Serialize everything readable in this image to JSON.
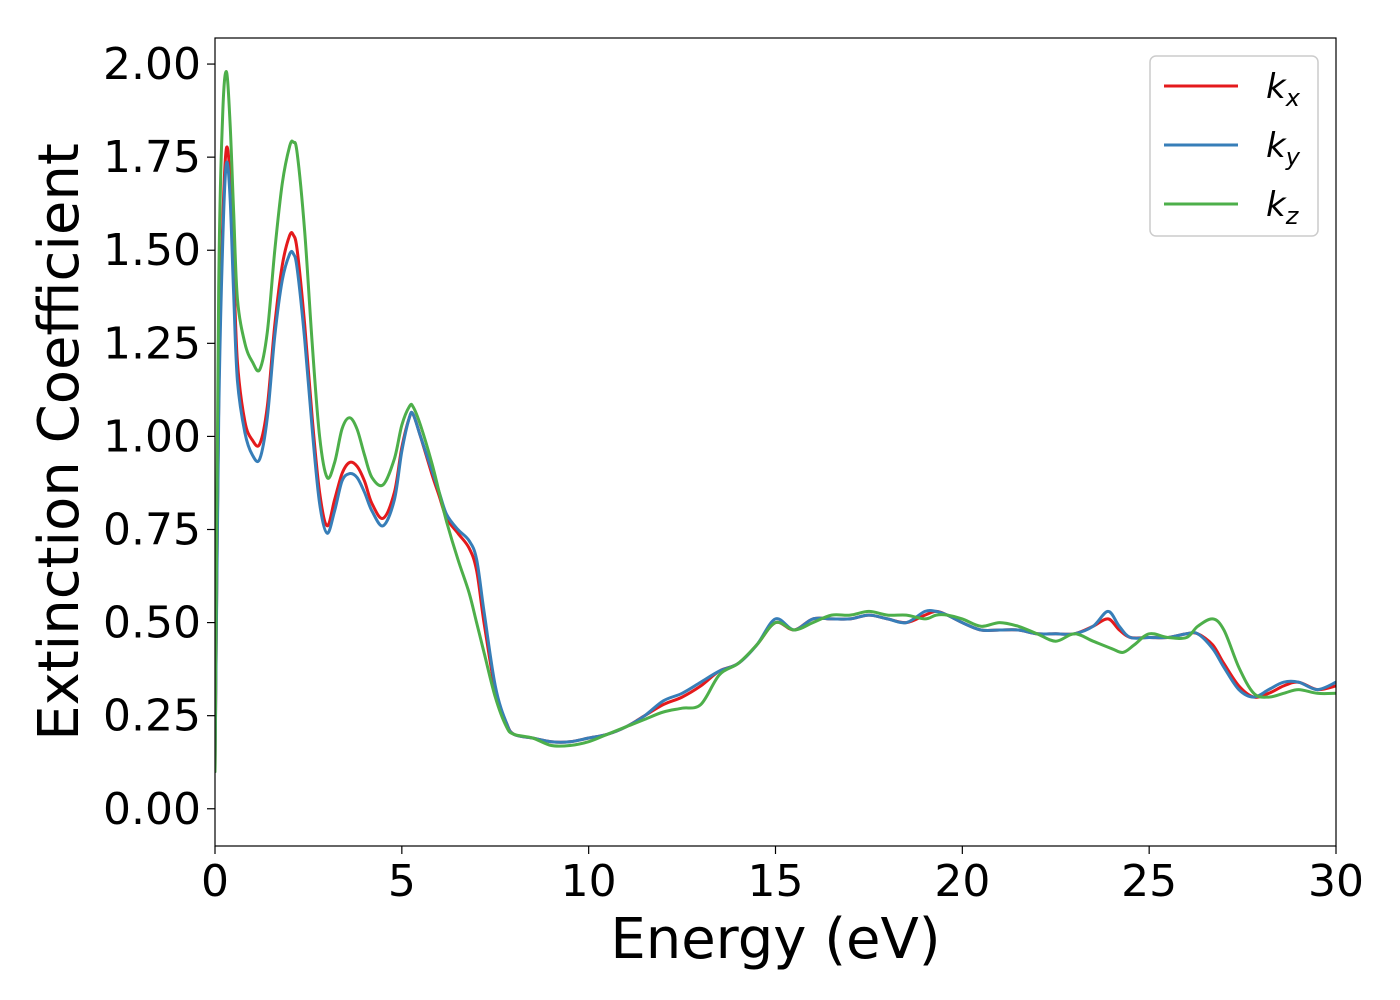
{
  "chart_data": {
    "type": "line",
    "xlabel": "Energy (eV)",
    "ylabel": "Extinction Coefficient",
    "xlim": [
      0,
      30
    ],
    "ylim": [
      -0.1,
      2.07
    ],
    "xticks": [
      0,
      5,
      10,
      15,
      20,
      25,
      30
    ],
    "xtick_labels": [
      "0",
      "5",
      "10",
      "15",
      "20",
      "25",
      "30"
    ],
    "yticks": [
      0.0,
      0.25,
      0.5,
      0.75,
      1.0,
      1.25,
      1.5,
      1.75,
      2.0
    ],
    "ytick_labels": [
      "0.00",
      "0.25",
      "0.50",
      "0.75",
      "1.00",
      "1.25",
      "1.50",
      "1.75",
      "2.00"
    ],
    "grid": false,
    "legend_position": "top-right",
    "series": [
      {
        "name": "k",
        "subscript": "x",
        "color": "#e41a1c",
        "x": [
          0,
          0.1,
          0.2,
          0.3,
          0.4,
          0.5,
          0.6,
          0.8,
          1.0,
          1.2,
          1.4,
          1.6,
          1.8,
          2.0,
          2.1,
          2.2,
          2.4,
          2.6,
          2.8,
          3.0,
          3.2,
          3.4,
          3.6,
          3.8,
          4.0,
          4.2,
          4.5,
          4.8,
          5.0,
          5.2,
          5.3,
          5.5,
          5.8,
          6.0,
          6.2,
          6.5,
          6.8,
          7.0,
          7.2,
          7.5,
          7.8,
          8.0,
          8.5,
          9.0,
          9.5,
          10.0,
          10.5,
          11.0,
          11.5,
          12.0,
          12.5,
          13.0,
          13.5,
          14.0,
          14.5,
          15.0,
          15.5,
          16.0,
          16.5,
          17.0,
          17.5,
          18.0,
          18.5,
          19.0,
          19.3,
          19.6,
          20.0,
          20.5,
          21.0,
          21.5,
          22.0,
          22.5,
          23.0,
          23.5,
          23.9,
          24.2,
          24.5,
          25.0,
          25.5,
          26.0,
          26.3,
          26.7,
          27.0,
          27.4,
          27.8,
          28.2,
          28.6,
          29.0,
          29.5,
          30.0
        ],
        "y": [
          0.1,
          1.1,
          1.55,
          1.77,
          1.7,
          1.45,
          1.2,
          1.04,
          0.99,
          0.98,
          1.08,
          1.3,
          1.46,
          1.54,
          1.54,
          1.5,
          1.3,
          1.05,
          0.85,
          0.76,
          0.83,
          0.9,
          0.93,
          0.92,
          0.88,
          0.82,
          0.78,
          0.85,
          0.97,
          1.05,
          1.06,
          1.0,
          0.9,
          0.84,
          0.78,
          0.74,
          0.7,
          0.64,
          0.5,
          0.32,
          0.23,
          0.2,
          0.19,
          0.18,
          0.18,
          0.19,
          0.2,
          0.22,
          0.25,
          0.28,
          0.3,
          0.33,
          0.37,
          0.39,
          0.44,
          0.5,
          0.48,
          0.51,
          0.51,
          0.51,
          0.52,
          0.51,
          0.5,
          0.52,
          0.53,
          0.52,
          0.5,
          0.48,
          0.48,
          0.48,
          0.47,
          0.47,
          0.47,
          0.49,
          0.51,
          0.48,
          0.46,
          0.46,
          0.46,
          0.47,
          0.47,
          0.44,
          0.39,
          0.33,
          0.3,
          0.31,
          0.33,
          0.34,
          0.32,
          0.33
        ]
      },
      {
        "name": "k",
        "subscript": "y",
        "color": "#377eb8",
        "x": [
          0,
          0.1,
          0.2,
          0.3,
          0.4,
          0.5,
          0.6,
          0.8,
          1.0,
          1.2,
          1.4,
          1.6,
          1.8,
          2.0,
          2.1,
          2.2,
          2.4,
          2.6,
          2.8,
          3.0,
          3.2,
          3.4,
          3.6,
          3.8,
          4.0,
          4.2,
          4.5,
          4.8,
          5.0,
          5.2,
          5.3,
          5.5,
          5.8,
          6.0,
          6.2,
          6.5,
          6.8,
          7.0,
          7.2,
          7.5,
          7.8,
          8.0,
          8.5,
          9.0,
          9.5,
          10.0,
          10.5,
          11.0,
          11.5,
          12.0,
          12.5,
          13.0,
          13.5,
          14.0,
          14.5,
          15.0,
          15.5,
          16.0,
          16.5,
          17.0,
          17.5,
          18.0,
          18.5,
          19.0,
          19.3,
          19.6,
          20.0,
          20.5,
          21.0,
          21.5,
          22.0,
          22.5,
          23.0,
          23.5,
          23.9,
          24.2,
          24.5,
          25.0,
          25.5,
          26.0,
          26.3,
          26.7,
          27.0,
          27.4,
          27.8,
          28.2,
          28.6,
          29.0,
          29.5,
          30.0
        ],
        "y": [
          0.1,
          1.05,
          1.5,
          1.73,
          1.65,
          1.38,
          1.15,
          1.01,
          0.95,
          0.94,
          1.05,
          1.27,
          1.42,
          1.49,
          1.49,
          1.45,
          1.26,
          1.02,
          0.82,
          0.74,
          0.8,
          0.88,
          0.9,
          0.89,
          0.85,
          0.8,
          0.76,
          0.83,
          0.96,
          1.05,
          1.06,
          1.0,
          0.91,
          0.85,
          0.79,
          0.75,
          0.72,
          0.67,
          0.53,
          0.33,
          0.23,
          0.2,
          0.19,
          0.18,
          0.18,
          0.19,
          0.2,
          0.22,
          0.25,
          0.29,
          0.31,
          0.34,
          0.37,
          0.39,
          0.44,
          0.51,
          0.48,
          0.51,
          0.51,
          0.51,
          0.52,
          0.51,
          0.5,
          0.53,
          0.53,
          0.52,
          0.5,
          0.48,
          0.48,
          0.48,
          0.47,
          0.47,
          0.47,
          0.49,
          0.53,
          0.49,
          0.46,
          0.46,
          0.46,
          0.47,
          0.47,
          0.43,
          0.38,
          0.32,
          0.3,
          0.32,
          0.34,
          0.34,
          0.32,
          0.34
        ]
      },
      {
        "name": "k",
        "subscript": "z",
        "color": "#4daf4a",
        "x": [
          0,
          0.1,
          0.2,
          0.3,
          0.4,
          0.5,
          0.6,
          0.8,
          1.0,
          1.2,
          1.4,
          1.6,
          1.8,
          2.0,
          2.1,
          2.2,
          2.4,
          2.6,
          2.8,
          3.0,
          3.2,
          3.4,
          3.6,
          3.8,
          4.0,
          4.2,
          4.5,
          4.8,
          5.0,
          5.2,
          5.3,
          5.5,
          5.8,
          6.0,
          6.2,
          6.5,
          6.8,
          7.0,
          7.2,
          7.5,
          7.8,
          8.0,
          8.5,
          9.0,
          9.5,
          10.0,
          10.5,
          11.0,
          11.5,
          12.0,
          12.5,
          13.0,
          13.5,
          14.0,
          14.5,
          15.0,
          15.5,
          16.0,
          16.5,
          17.0,
          17.5,
          18.0,
          18.5,
          19.0,
          19.3,
          19.6,
          20.0,
          20.5,
          21.0,
          21.5,
          22.0,
          22.5,
          23.0,
          23.5,
          24.0,
          24.3,
          24.6,
          25.0,
          25.5,
          26.0,
          26.3,
          26.7,
          27.0,
          27.4,
          27.8,
          28.2,
          28.6,
          29.0,
          29.5,
          30.0
        ],
        "y": [
          0.1,
          1.4,
          1.85,
          1.98,
          1.85,
          1.6,
          1.37,
          1.25,
          1.2,
          1.18,
          1.28,
          1.5,
          1.68,
          1.78,
          1.79,
          1.76,
          1.55,
          1.25,
          1.0,
          0.89,
          0.93,
          1.02,
          1.05,
          1.02,
          0.95,
          0.89,
          0.87,
          0.94,
          1.03,
          1.08,
          1.08,
          1.03,
          0.93,
          0.85,
          0.77,
          0.67,
          0.58,
          0.5,
          0.42,
          0.3,
          0.22,
          0.2,
          0.19,
          0.17,
          0.17,
          0.18,
          0.2,
          0.22,
          0.24,
          0.26,
          0.27,
          0.28,
          0.36,
          0.39,
          0.44,
          0.5,
          0.48,
          0.5,
          0.52,
          0.52,
          0.53,
          0.52,
          0.52,
          0.51,
          0.52,
          0.52,
          0.51,
          0.49,
          0.5,
          0.49,
          0.47,
          0.45,
          0.47,
          0.45,
          0.43,
          0.42,
          0.44,
          0.47,
          0.46,
          0.46,
          0.49,
          0.51,
          0.48,
          0.38,
          0.31,
          0.3,
          0.31,
          0.32,
          0.31,
          0.31
        ]
      }
    ]
  }
}
